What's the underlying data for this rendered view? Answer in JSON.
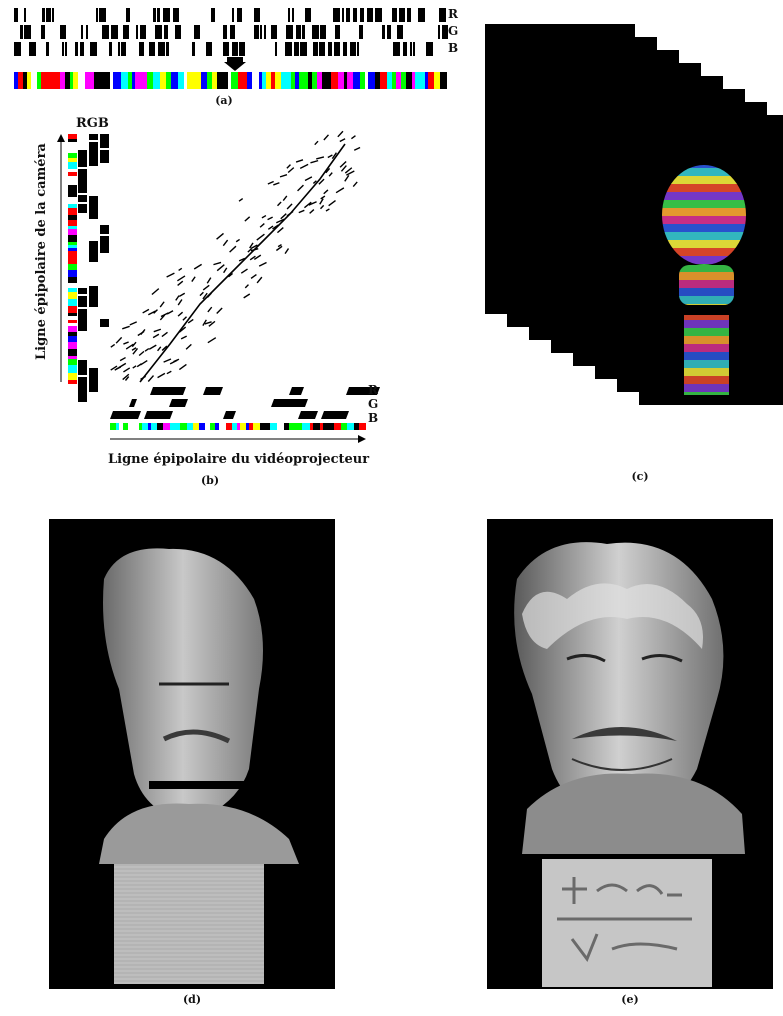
{
  "panel_a": {
    "channels": [
      "R",
      "G",
      "B"
    ],
    "caption": "(a)"
  },
  "panel_b": {
    "channel_top": "RGB",
    "channels_bottom": [
      "R",
      "G",
      "B"
    ],
    "y_axis_label": "Ligne épipolaire de la caméra",
    "x_axis_label": "Ligne épipolaire du vidéoprojecteur",
    "caption": "(b)"
  },
  "panel_c": {
    "caption": "(c)"
  },
  "panel_d": {
    "caption": "(d)"
  },
  "panel_e": {
    "caption": "(e)"
  },
  "colors": {
    "stripe_palette": [
      "#ff0000",
      "#00ff00",
      "#0000ff",
      "#ffff00",
      "#00ffff",
      "#ff00ff",
      "#ffffff",
      "#000000"
    ],
    "background_dark": "#000000"
  }
}
